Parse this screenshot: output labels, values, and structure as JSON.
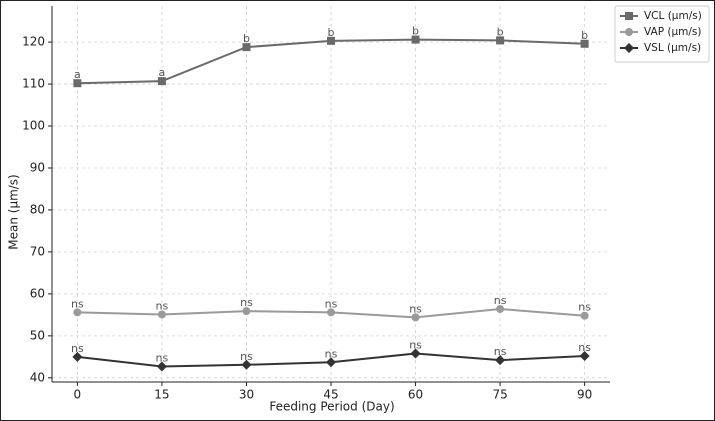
{
  "chart_data": {
    "type": "line",
    "x_label": "Feeding Period (Day)",
    "y_label": "Mean (µm/s)",
    "x": [
      0,
      15,
      30,
      45,
      60,
      75,
      90
    ],
    "xlim": [
      -4.5,
      94.5
    ],
    "xticks": [
      0,
      15,
      30,
      45,
      60,
      75,
      90
    ],
    "ylim": [
      39,
      128.6
    ],
    "yticks": [
      40,
      50,
      60,
      70,
      80,
      90,
      100,
      110,
      120
    ],
    "grid": true,
    "legend": "upper right outside",
    "series": [
      {
        "name": "VCL (µm/s)",
        "color": "#6a6a6a",
        "marker": "square",
        "values": [
          110.2,
          110.7,
          118.8,
          120.3,
          120.6,
          120.4,
          119.6
        ],
        "point_labels": [
          "a",
          "a",
          "b",
          "b",
          "b",
          "b",
          "b"
        ]
      },
      {
        "name": "VAP (µm/s)",
        "color": "#9a9a9a",
        "marker": "circle",
        "values": [
          55.6,
          55.1,
          55.9,
          55.6,
          54.4,
          56.4,
          54.8
        ],
        "point_labels": [
          "ns",
          "ns",
          "ns",
          "ns",
          "ns",
          "ns",
          "ns"
        ]
      },
      {
        "name": "VSL (µm/s)",
        "color": "#333333",
        "marker": "diamond",
        "values": [
          45.0,
          42.7,
          43.1,
          43.7,
          45.8,
          44.2,
          45.2
        ],
        "point_labels": [
          "ns",
          "ns",
          "ns",
          "ns",
          "ns",
          "ns",
          "ns"
        ]
      }
    ]
  }
}
